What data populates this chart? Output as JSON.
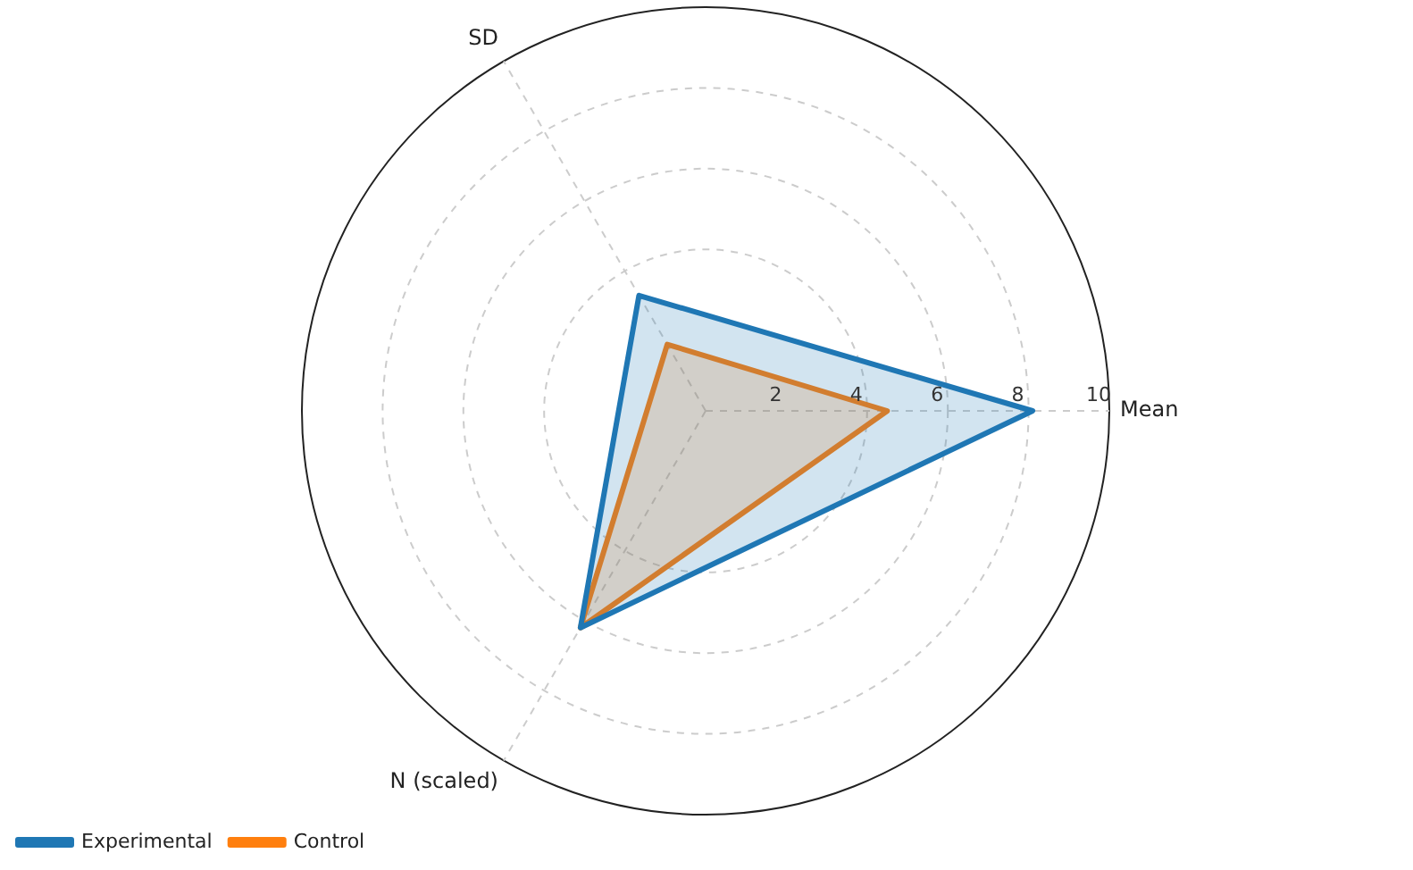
{
  "chart_data": {
    "type": "radar",
    "categories": [
      "Mean",
      "N (scaled)",
      "SD"
    ],
    "series": [
      {
        "name": "Experimental",
        "color": "#1f77b4",
        "values": [
          8.1,
          6.2,
          3.3
        ]
      },
      {
        "name": "Control",
        "color": "#ff7f0e",
        "values": [
          4.5,
          6.2,
          1.9
        ]
      }
    ],
    "ylim": [
      0,
      10
    ],
    "yticks": [
      2,
      4,
      6,
      8,
      10
    ],
    "grid": true,
    "legend": "bottom left",
    "marker": "none"
  }
}
